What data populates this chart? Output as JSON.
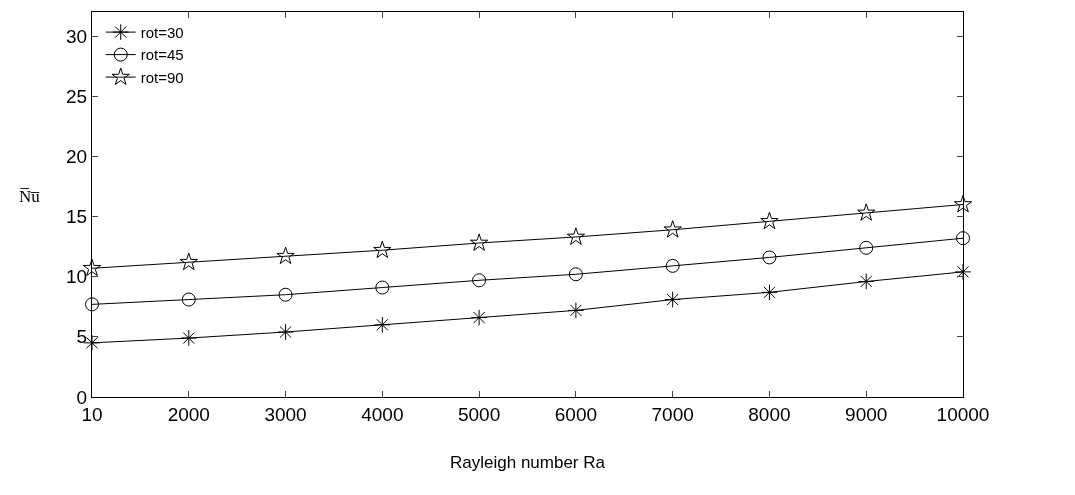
{
  "chart_data": {
    "type": "line",
    "xlabel": "Rayleigh number Ra",
    "ylabel": "N̅u̅",
    "categories": [
      "10",
      "2000",
      "3000",
      "4000",
      "5000",
      "6000",
      "7000",
      "8000",
      "9000",
      "10000"
    ],
    "ylim": [
      0,
      32
    ],
    "yticks": [
      0,
      5,
      10,
      15,
      20,
      25,
      30
    ],
    "legend": "top left",
    "line_style": "solid",
    "series": [
      {
        "name": "rot=30",
        "color": "#000000",
        "marker": "cross",
        "values": [
          4.5,
          4.9,
          5.4,
          6.0,
          6.6,
          7.2,
          8.1,
          8.7,
          9.6,
          10.4
        ]
      },
      {
        "name": "rot=45",
        "color": "#000000",
        "marker": "circle",
        "values": [
          7.7,
          8.1,
          8.5,
          9.1,
          9.7,
          10.2,
          10.9,
          11.6,
          12.4,
          13.2
        ]
      },
      {
        "name": "rot=90",
        "color": "#000000",
        "marker": "star",
        "values": [
          10.7,
          11.2,
          11.7,
          12.2,
          12.8,
          13.3,
          13.9,
          14.6,
          15.3,
          16.0
        ]
      }
    ]
  }
}
